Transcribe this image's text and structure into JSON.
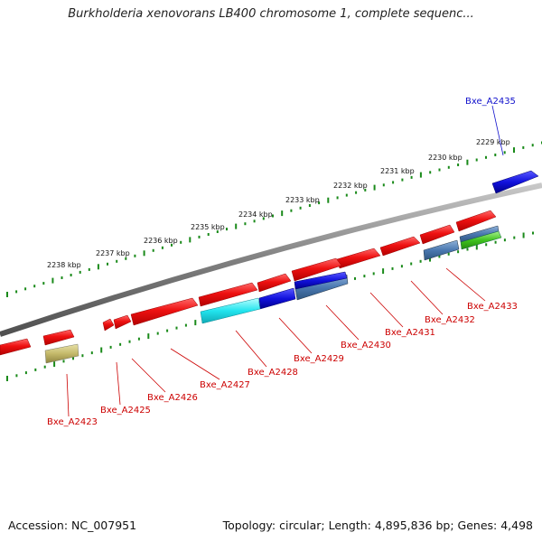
{
  "title": "Burkholderia xenovorans LB400 chromosome 1, complete sequenc...",
  "footer": {
    "accession": "Accession: NC_007951",
    "topology": "Topology: circular; Length: 4,895,836 bp; Genes: 4,498"
  },
  "colors": {
    "backbone": "#808080",
    "tick": "#1a8a1a",
    "forward_gene": "#ee1111",
    "highlight_gene": "#1111dd",
    "label_red": "#cc0000",
    "label_blue": "#1111cc"
  },
  "scale_labels": [
    "2229 kbp",
    "2230 kbp",
    "2231 kbp",
    "2232 kbp",
    "2233 kbp",
    "2234 kbp",
    "2235 kbp",
    "2236 kbp",
    "2237 kbp",
    "2238 kbp"
  ],
  "gene_labels": [
    {
      "text": "Bxe_A2435",
      "color": "blue"
    },
    {
      "text": "Bxe_A2433",
      "color": "red"
    },
    {
      "text": "Bxe_A2432",
      "color": "red"
    },
    {
      "text": "Bxe_A2431",
      "color": "red"
    },
    {
      "text": "Bxe_A2430",
      "color": "red"
    },
    {
      "text": "Bxe_A2429",
      "color": "red"
    },
    {
      "text": "Bxe_A2428",
      "color": "red"
    },
    {
      "text": "Bxe_A2427",
      "color": "red"
    },
    {
      "text": "Bxe_A2426",
      "color": "red"
    },
    {
      "text": "Bxe_A2425",
      "color": "red"
    },
    {
      "text": "Bxe_A2423",
      "color": "red"
    }
  ]
}
